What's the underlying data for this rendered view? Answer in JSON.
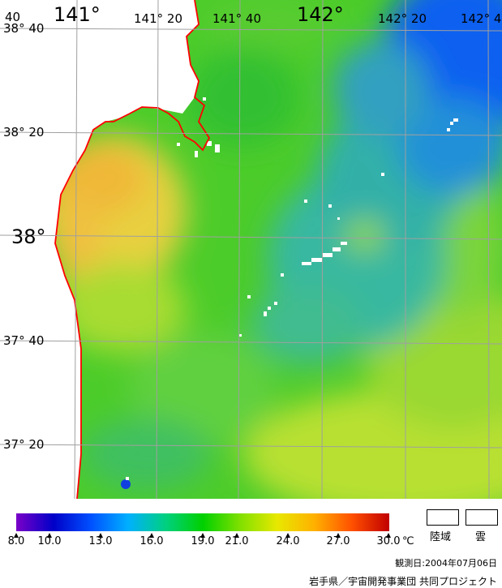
{
  "map": {
    "lon_labels": [
      {
        "text": "141°",
        "big": true
      },
      {
        "text": "141°  20",
        "big": false
      },
      {
        "text": "141°  40",
        "big": false
      },
      {
        "text": "142°",
        "big": true
      },
      {
        "text": "142°  20",
        "big": false
      },
      {
        "text": "142°  4",
        "big": false
      }
    ],
    "lat_labels": [
      {
        "text": "38°  40",
        "big": false
      },
      {
        "text": "38°  20",
        "big": false
      },
      {
        "text": "38°",
        "big": true
      },
      {
        "text": "37°  40",
        "big": false
      },
      {
        "text": "37°  20",
        "big": false
      }
    ],
    "corner_label": "40",
    "coast_color": "#ff0000",
    "grid_color": "#a0a0a0"
  },
  "colorbar": {
    "tick_labels": [
      "8.0",
      "10.0",
      "13.0",
      "16.0",
      "19.0",
      "21.0",
      "24.0",
      "27.0",
      "30.0"
    ],
    "unit": "℃",
    "colors": [
      "#7a00c8",
      "#0000c8",
      "#0050ff",
      "#00b0ff",
      "#00d080",
      "#00d000",
      "#80e000",
      "#e8e800",
      "#ffb000",
      "#ff5000",
      "#c00000"
    ]
  },
  "legend": {
    "land_label": "陸域",
    "cloud_label": "雲"
  },
  "footer": {
    "observation_date": "観測日:2004年07月06日",
    "credit": "岩手県／宇宙開発事業団 共同プロジェクト"
  }
}
